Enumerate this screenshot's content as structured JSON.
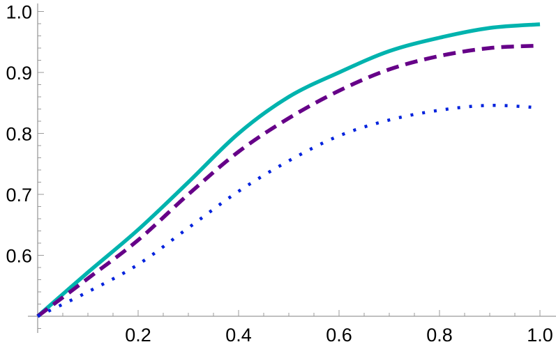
{
  "chart_data": {
    "type": "line",
    "title": "",
    "xlabel": "",
    "ylabel": "",
    "xlim": [
      0,
      1
    ],
    "ylim": [
      0.5,
      1.0
    ],
    "grid": false,
    "x_ticks": [
      "0.2",
      "0.4",
      "0.6",
      "0.8",
      "1.0"
    ],
    "y_ticks": [
      "0.6",
      "0.7",
      "0.8",
      "0.9",
      "1.0"
    ],
    "x": [
      0,
      0.1,
      0.2,
      0.3,
      0.4,
      0.5,
      0.6,
      0.7,
      0.8,
      0.9,
      1.0
    ],
    "series": [
      {
        "style": "solid",
        "color": "#00b3ae",
        "values": [
          0.5,
          0.572,
          0.642,
          0.72,
          0.8,
          0.86,
          0.9,
          0.935,
          0.957,
          0.973,
          0.979
        ]
      },
      {
        "style": "dashed",
        "color": "#660088",
        "values": [
          0.5,
          0.562,
          0.625,
          0.7,
          0.77,
          0.825,
          0.87,
          0.905,
          0.927,
          0.94,
          0.944
        ]
      },
      {
        "style": "dotted",
        "color": "#0022dd",
        "values": [
          0.5,
          0.54,
          0.585,
          0.645,
          0.705,
          0.755,
          0.796,
          0.822,
          0.838,
          0.846,
          0.842
        ]
      }
    ]
  }
}
